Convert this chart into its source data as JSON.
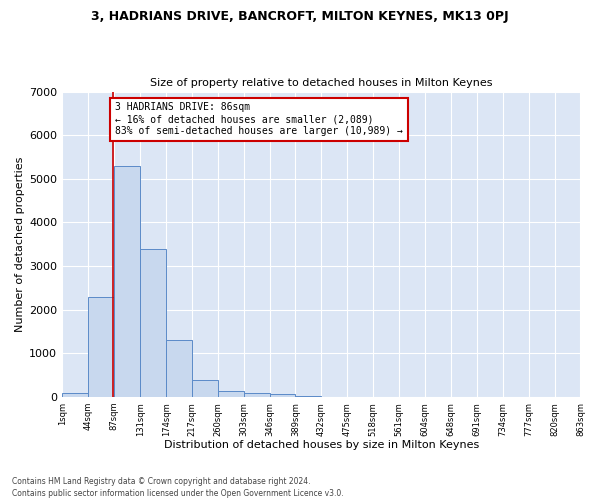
{
  "title1": "3, HADRIANS DRIVE, BANCROFT, MILTON KEYNES, MK13 0PJ",
  "title2": "Size of property relative to detached houses in Milton Keynes",
  "xlabel": "Distribution of detached houses by size in Milton Keynes",
  "ylabel": "Number of detached properties",
  "footnote1": "Contains HM Land Registry data © Crown copyright and database right 2024.",
  "footnote2": "Contains public sector information licensed under the Open Government Licence v3.0.",
  "bar_color": "#c8d8ee",
  "bar_edge_color": "#5b8ac8",
  "background_color": "#dce6f5",
  "fig_background": "#ffffff",
  "grid_color": "#ffffff",
  "annotation_box_edge_color": "#cc0000",
  "annotation_line_color": "#cc0000",
  "property_line_x": 86,
  "annotation_text_line1": "3 HADRIANS DRIVE: 86sqm",
  "annotation_text_line2": "← 16% of detached houses are smaller (2,089)",
  "annotation_text_line3": "83% of semi-detached houses are larger (10,989) →",
  "bin_edges": [
    1,
    44,
    87,
    131,
    174,
    217,
    260,
    303,
    346,
    389,
    432,
    475,
    518,
    561,
    604,
    648,
    691,
    734,
    777,
    820,
    863
  ],
  "bin_labels": [
    "1sqm",
    "44sqm",
    "87sqm",
    "131sqm",
    "174sqm",
    "217sqm",
    "260sqm",
    "303sqm",
    "346sqm",
    "389sqm",
    "432sqm",
    "475sqm",
    "518sqm",
    "561sqm",
    "604sqm",
    "648sqm",
    "691sqm",
    "734sqm",
    "777sqm",
    "820sqm",
    "863sqm"
  ],
  "bar_heights": [
    80,
    2300,
    5300,
    3400,
    1300,
    390,
    145,
    100,
    75,
    25,
    8,
    4,
    2,
    1,
    1,
    0,
    0,
    0,
    0,
    0
  ],
  "ylim": [
    0,
    7000
  ],
  "yticks": [
    0,
    1000,
    2000,
    3000,
    4000,
    5000,
    6000,
    7000
  ]
}
